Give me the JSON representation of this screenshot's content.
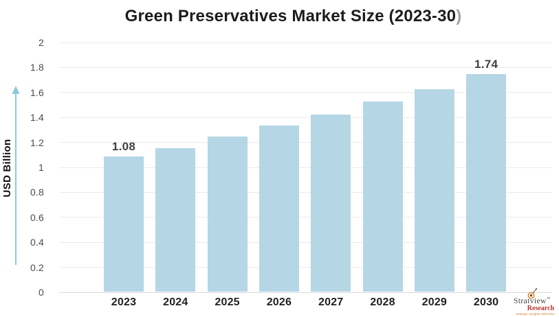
{
  "title": {
    "main": "Green Preservatives Market Size (2023-30",
    "paren": ")"
  },
  "y_axis": {
    "label": "USD Billion",
    "ticks": [
      "0",
      "0.2",
      "0.4",
      "0.6",
      "0.8",
      "1",
      "1.2",
      "1.4",
      "1.6",
      "1.8",
      "2"
    ]
  },
  "watermark": {
    "brand": "Stratview",
    "trademark": "™",
    "division": "Research",
    "tagline": "Strategic Insights Delivered"
  },
  "colors": {
    "bar": "#b5d6e5",
    "arrow": "#8cc8de",
    "grid": "#ebebeb",
    "axis_line": "#d8d8d8",
    "title_text": "#1c1c1c",
    "title_paren": "#a3a3a3",
    "tick_text": "#4a4a4a",
    "data_label": "#404040",
    "brand_text": "#45413c",
    "research_red": "#b5342a",
    "tagline_orange": "#c87d2a"
  },
  "chart_data": {
    "type": "bar",
    "categories": [
      "2023",
      "2024",
      "2025",
      "2026",
      "2027",
      "2028",
      "2029",
      "2030"
    ],
    "values": [
      1.08,
      1.15,
      1.24,
      1.33,
      1.42,
      1.52,
      1.62,
      1.74
    ],
    "data_labels": [
      {
        "index": 0,
        "label": "1.08"
      },
      {
        "index": 7,
        "label": "1.74"
      }
    ],
    "title": "Green Preservatives Market Size (2023-30)",
    "xlabel": "",
    "ylabel": "USD Billion",
    "ylim": [
      0,
      2
    ],
    "ytick_step": 0.2,
    "grid": true,
    "legend": false,
    "bar_color": "#b5d6e5"
  }
}
